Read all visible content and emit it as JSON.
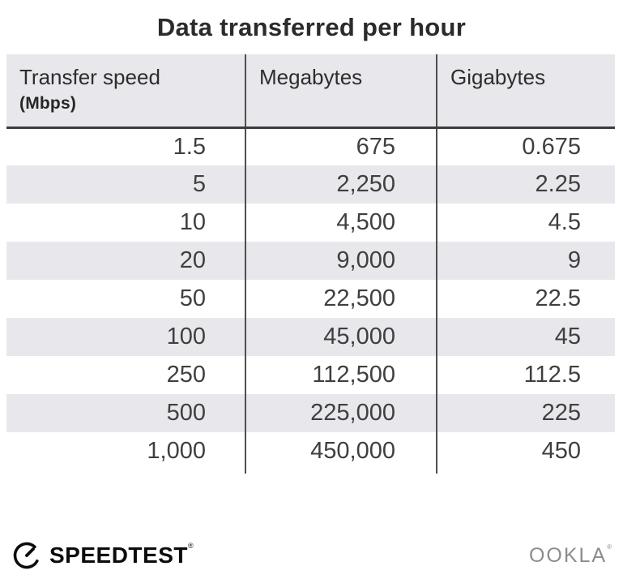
{
  "title": "Data transferred per hour",
  "table": {
    "columns": [
      {
        "label": "Transfer speed",
        "sublabel": "(Mbps)"
      },
      {
        "label": "Megabytes",
        "sublabel": ""
      },
      {
        "label": "Gigabytes",
        "sublabel": ""
      }
    ],
    "rows": [
      [
        "1.5",
        "675",
        "0.675"
      ],
      [
        "5",
        "2,250",
        "2.25"
      ],
      [
        "10",
        "4,500",
        "4.5"
      ],
      [
        "20",
        "9,000",
        "9"
      ],
      [
        "50",
        "22,500",
        "22.5"
      ],
      [
        "100",
        "45,000",
        "45"
      ],
      [
        "250",
        "112,500",
        "112.5"
      ],
      [
        "500",
        "225,000",
        "225"
      ],
      [
        "1,000",
        "450,000",
        "450"
      ]
    ]
  },
  "chart_data": {
    "type": "table",
    "title": "Data transferred per hour",
    "columns": [
      "Transfer speed (Mbps)",
      "Megabytes",
      "Gigabytes"
    ],
    "rows": [
      [
        1.5,
        675,
        0.675
      ],
      [
        5,
        2250,
        2.25
      ],
      [
        10,
        4500,
        4.5
      ],
      [
        20,
        9000,
        9
      ],
      [
        50,
        22500,
        22.5
      ],
      [
        100,
        45000,
        45
      ],
      [
        250,
        112500,
        112.5
      ],
      [
        500,
        225000,
        225
      ],
      [
        1000,
        450000,
        450
      ]
    ]
  },
  "footer": {
    "speedtest_label": "SPEEDTEST",
    "speedtest_mark": "®",
    "ookla_label": "OOKLA",
    "ookla_mark": "®"
  },
  "colors": {
    "header_bg": "#e8e7eb",
    "stripe_bg": "#e8e8ec",
    "divider": "#4f4f4f",
    "header_border": "#3c3c3c",
    "title_text": "#2b2b2b",
    "row_text": "#3f3f3f",
    "speedtest_black": "#0c0c0c",
    "ookla_gray": "#8c8c8c"
  }
}
